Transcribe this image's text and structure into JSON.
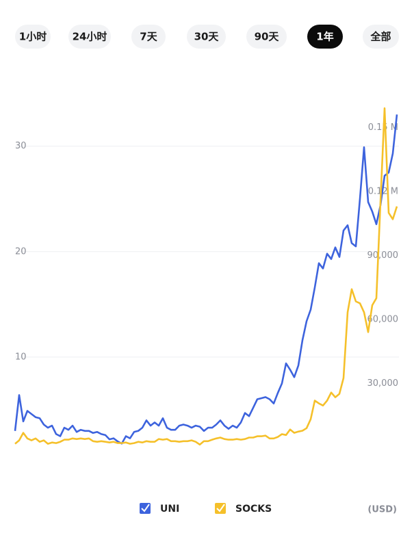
{
  "tabs": [
    "1小时",
    "24小时",
    "7天",
    "30天",
    "90天",
    "1年",
    "全部"
  ],
  "selected_tab": 5,
  "chart_data": {
    "type": "line",
    "series": [
      {
        "name": "UNI",
        "color": "#3d63dd",
        "axis": "y",
        "values": [
          3.0,
          6.4,
          3.9,
          4.9,
          4.6,
          4.3,
          4.2,
          3.6,
          3.3,
          3.5,
          2.7,
          2.5,
          3.3,
          3.1,
          3.5,
          2.9,
          3.1,
          3.0,
          3.0,
          2.8,
          2.9,
          2.7,
          2.6,
          2.2,
          2.3,
          2.0,
          1.8,
          2.5,
          2.3,
          2.9,
          3.0,
          3.3,
          4.0,
          3.5,
          3.8,
          3.5,
          4.2,
          3.3,
          3.1,
          3.1,
          3.5,
          3.6,
          3.5,
          3.3,
          3.5,
          3.4,
          3.0,
          3.3,
          3.3,
          3.6,
          4.0,
          3.5,
          3.2,
          3.5,
          3.3,
          3.8,
          4.7,
          4.4,
          5.2,
          6.0,
          6.1,
          6.2,
          6.0,
          5.6,
          6.6,
          7.5,
          9.4,
          8.8,
          8.1,
          9.2,
          11.6,
          13.4,
          14.5,
          16.6,
          18.9,
          18.4,
          19.8,
          19.3,
          20.4,
          19.5,
          22.0,
          22.5,
          20.8,
          20.5,
          25.0,
          29.9,
          24.7,
          23.8,
          22.6,
          24.4,
          27.2,
          27.5,
          29.3,
          33.0
        ]
      },
      {
        "name": "SOCKS",
        "color": "#f5c02a",
        "axis": "y2",
        "values": [
          1800,
          3400,
          6900,
          4300,
          3400,
          4300,
          2700,
          3400,
          1800,
          2400,
          2100,
          2700,
          3700,
          3700,
          4300,
          4000,
          4300,
          4000,
          4300,
          3000,
          2700,
          3000,
          2700,
          2400,
          2700,
          2100,
          2100,
          2400,
          1800,
          2100,
          2700,
          2400,
          3000,
          2700,
          2700,
          4000,
          3700,
          4000,
          3000,
          3000,
          2700,
          3000,
          3000,
          3400,
          2700,
          1400,
          3000,
          3000,
          3700,
          4300,
          4700,
          4000,
          3700,
          3700,
          4000,
          3700,
          4000,
          4700,
          4700,
          5300,
          5300,
          5600,
          4300,
          4300,
          5000,
          6300,
          5900,
          8500,
          6900,
          7500,
          7900,
          9100,
          13300,
          22000,
          20700,
          19700,
          22000,
          25800,
          23600,
          25200,
          32600,
          63400,
          74200,
          68500,
          67600,
          63400,
          54100,
          66700,
          70000,
          115000,
          159000,
          110000,
          107000,
          113000
        ]
      }
    ],
    "ylim": [
      0,
      34
    ],
    "yticks": [
      10,
      20,
      30
    ],
    "y2lim": [
      -7000,
      161000
    ],
    "y2ticks": [
      {
        "value": 30000,
        "label": "30,000"
      },
      {
        "value": 60000,
        "label": "60,000"
      },
      {
        "value": 90000,
        "label": "90,000"
      },
      {
        "value": 120000,
        "label": "0.12 M"
      },
      {
        "value": 150000,
        "label": "0.15 M"
      }
    ],
    "grid": true,
    "currency_label": "(USD)"
  }
}
